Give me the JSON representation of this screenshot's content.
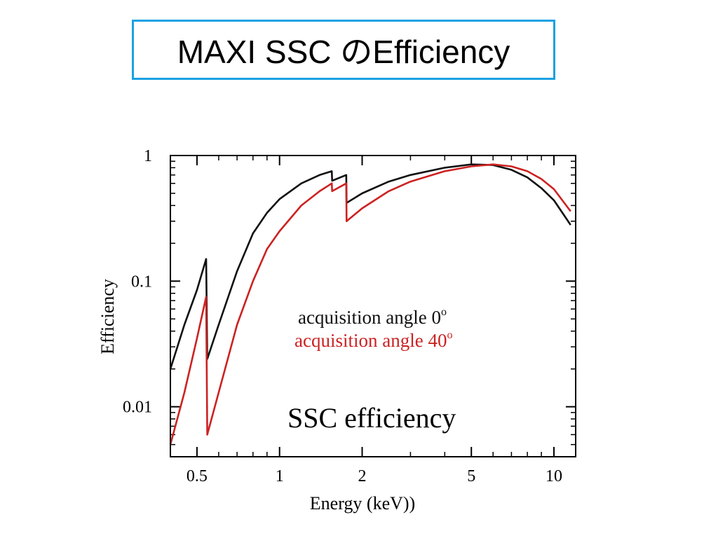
{
  "slide": {
    "title": "MAXI SSC のEfficiency"
  },
  "colors": {
    "series_0deg": "#111111",
    "series_40deg": "#cc2222",
    "title_border": "#1ba1e2"
  },
  "chart_data": {
    "type": "line",
    "title": "SSC efficiency",
    "xlabel": "Energy (keV))",
    "ylabel": "Efficiency",
    "xscale": "log",
    "yscale": "log",
    "xlim": [
      0.4,
      12
    ],
    "ylim": [
      0.004,
      1
    ],
    "x_ticks": [
      {
        "value": 0.5,
        "label": "0.5"
      },
      {
        "value": 1,
        "label": "1"
      },
      {
        "value": 2,
        "label": "2"
      },
      {
        "value": 5,
        "label": "5"
      },
      {
        "value": 10,
        "label": "10"
      }
    ],
    "y_ticks": [
      {
        "value": 1,
        "label": "1"
      },
      {
        "value": 0.1,
        "label": "0.1"
      },
      {
        "value": 0.01,
        "label": "0.01"
      }
    ],
    "grid": false,
    "legend_position": "center",
    "series": [
      {
        "name": "acquisition angle  0",
        "name_sup": "o",
        "color": "#111111",
        "points": [
          [
            0.4,
            0.02
          ],
          [
            0.45,
            0.045
          ],
          [
            0.5,
            0.085
          ],
          [
            0.54,
            0.15
          ],
          [
            0.545,
            0.024
          ],
          [
            0.6,
            0.045
          ],
          [
            0.7,
            0.12
          ],
          [
            0.8,
            0.24
          ],
          [
            0.9,
            0.35
          ],
          [
            1.0,
            0.45
          ],
          [
            1.2,
            0.6
          ],
          [
            1.4,
            0.7
          ],
          [
            1.55,
            0.75
          ],
          [
            1.555,
            0.63
          ],
          [
            1.75,
            0.7
          ],
          [
            1.755,
            0.42
          ],
          [
            2.0,
            0.5
          ],
          [
            2.5,
            0.62
          ],
          [
            3.0,
            0.7
          ],
          [
            4.0,
            0.8
          ],
          [
            5.0,
            0.85
          ],
          [
            6.0,
            0.84
          ],
          [
            7.0,
            0.77
          ],
          [
            8.0,
            0.67
          ],
          [
            9.0,
            0.55
          ],
          [
            10.0,
            0.44
          ],
          [
            11.5,
            0.28
          ]
        ]
      },
      {
        "name": "acquisition angle 40",
        "name_sup": "o",
        "color": "#cc2222",
        "points": [
          [
            0.4,
            0.005
          ],
          [
            0.45,
            0.013
          ],
          [
            0.5,
            0.035
          ],
          [
            0.54,
            0.075
          ],
          [
            0.545,
            0.006
          ],
          [
            0.6,
            0.013
          ],
          [
            0.7,
            0.045
          ],
          [
            0.8,
            0.1
          ],
          [
            0.9,
            0.18
          ],
          [
            1.0,
            0.25
          ],
          [
            1.2,
            0.4
          ],
          [
            1.4,
            0.52
          ],
          [
            1.55,
            0.6
          ],
          [
            1.555,
            0.52
          ],
          [
            1.75,
            0.6
          ],
          [
            1.755,
            0.3
          ],
          [
            2.0,
            0.38
          ],
          [
            2.5,
            0.52
          ],
          [
            3.0,
            0.62
          ],
          [
            4.0,
            0.75
          ],
          [
            5.0,
            0.82
          ],
          [
            6.0,
            0.85
          ],
          [
            7.0,
            0.82
          ],
          [
            8.0,
            0.75
          ],
          [
            9.0,
            0.65
          ],
          [
            10.0,
            0.54
          ],
          [
            11.5,
            0.36
          ]
        ]
      }
    ]
  }
}
